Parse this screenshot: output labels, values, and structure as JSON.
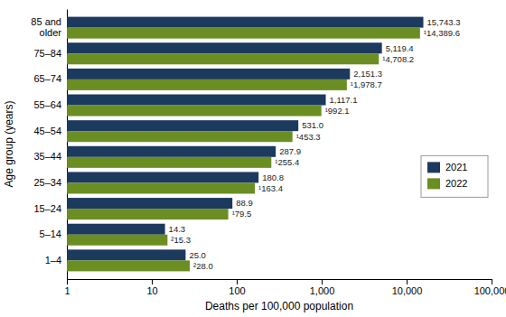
{
  "chart_data": {
    "type": "bar",
    "orientation": "horizontal",
    "log": "x",
    "categories": [
      "85 and\nolder",
      "75–84",
      "65–74",
      "55–64",
      "45–54",
      "35–44",
      "25–34",
      "15–24",
      "5–14",
      "1–4"
    ],
    "series": [
      {
        "name": "2021",
        "color": "#1c3a5e",
        "values": [
          15743.3,
          5119.4,
          2151.3,
          1117.1,
          531.0,
          287.9,
          180.8,
          88.9,
          14.3,
          25.0
        ],
        "value_labels": [
          "15,743.3",
          "5,119.4",
          "2,151.3",
          "1,117.1",
          "531.0",
          "287.9",
          "180.8",
          "88.9",
          "14.3",
          "25.0"
        ]
      },
      {
        "name": "2022",
        "color": "#6b8e23",
        "values": [
          14389.6,
          4708.2,
          1978.7,
          992.1,
          453.3,
          255.4,
          163.4,
          79.5,
          15.3,
          28.0
        ],
        "value_labels": [
          "¹14,389.6",
          "¹4,708.2",
          "¹1,978.7",
          "¹992.1",
          "¹453.3",
          "¹255.4",
          "¹163.4",
          "¹79.5",
          "²15.3",
          "²28.0"
        ]
      }
    ],
    "data_labels": true,
    "xlim": [
      1,
      100000
    ],
    "xticks": [
      1,
      10,
      100,
      {
        "value": 1000,
        "label": "1,000"
      },
      {
        "value": 10000,
        "label": "10,000"
      },
      {
        "value": 100000,
        "label": "100,000"
      }
    ],
    "xlabel": "Deaths per 100,000 population",
    "ylabel": "Age group (years)",
    "legend": "right",
    "grid": false
  }
}
